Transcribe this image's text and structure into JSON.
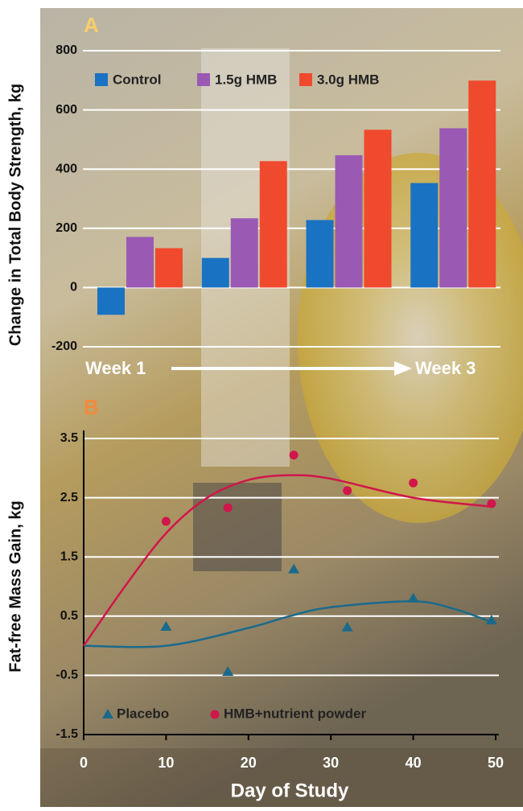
{
  "chart_data": [
    {
      "type": "bar",
      "panel_label": "A",
      "ylabel": "Change in Total Body Strength, kg",
      "categories": [
        null,
        null,
        null,
        null
      ],
      "series": [
        {
          "name": "Control",
          "color": "#1a72c2",
          "values": [
            -92,
            100,
            228,
            353
          ]
        },
        {
          "name": "1.5g HMB",
          "color": "#9a5ab4",
          "values": [
            171,
            234,
            447,
            538
          ]
        },
        {
          "name": "3.0g HMB",
          "color": "#f04a2e",
          "values": [
            133,
            427,
            533,
            699
          ]
        }
      ],
      "ylim": [
        -200,
        800
      ],
      "yticks": [
        -200,
        0,
        200,
        400,
        600,
        800
      ],
      "grid": true,
      "annotations": [
        "Week 1",
        "Week 3"
      ]
    },
    {
      "type": "scatter",
      "panel_label": "B",
      "xlabel": "Day of Study",
      "ylabel": "Fat-free Mass Gain, kg",
      "x": [
        10,
        17.5,
        25.5,
        32,
        40,
        49.5
      ],
      "series": [
        {
          "name": "Placebo",
          "color": "#1b6a8c",
          "marker": "triangle",
          "values": [
            0.32,
            -0.44,
            1.29,
            0.31,
            0.8,
            0.43
          ],
          "fit": {
            "x": [
              0,
              10,
              20,
              25,
              30,
              40,
              45,
              49.5
            ],
            "values": [
              0,
              0,
              0.3,
              0.5,
              0.65,
              0.75,
              0.62,
              0.4
            ]
          }
        },
        {
          "name": "HMB+nutrient powder",
          "color": "#d0164b",
          "marker": "circle",
          "values": [
            2.1,
            2.33,
            3.22,
            2.62,
            2.75,
            2.4
          ],
          "fit": {
            "x": [
              0,
              5,
              10,
              15,
              20,
              25,
              30,
              40,
              49.5
            ],
            "values": [
              0,
              1.0,
              1.9,
              2.5,
              2.8,
              2.88,
              2.82,
              2.5,
              2.35
            ]
          }
        }
      ],
      "xlim": [
        0,
        50
      ],
      "xticks": [
        0,
        10,
        20,
        30,
        40,
        50
      ],
      "ylim": [
        -1.5,
        3.5
      ],
      "yticks": [
        -1.5,
        -0.5,
        0.5,
        1.5,
        2.5,
        3.5
      ],
      "grid": true
    }
  ]
}
